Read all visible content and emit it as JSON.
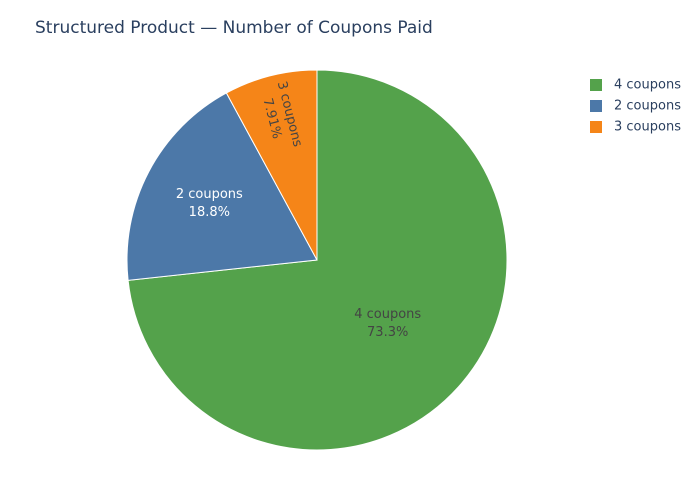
{
  "chart_data": {
    "type": "pie",
    "title": "Structured Product — Number of Coupons Paid",
    "categories": [
      "4 coupons",
      "2 coupons",
      "3 coupons"
    ],
    "values": [
      73.3,
      18.8,
      7.91
    ],
    "value_labels": [
      "73.3%",
      "18.8%",
      "7.91%"
    ],
    "colors": [
      "#54a24b",
      "#4c78a8",
      "#f58518"
    ],
    "legend": "top-right"
  }
}
